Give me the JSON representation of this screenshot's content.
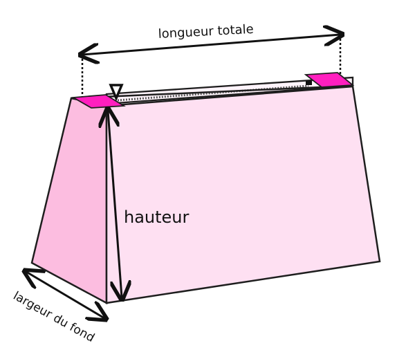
{
  "labels": {
    "total_length": "longueur totale",
    "height": "hauteur",
    "bottom_width": "largeur du fond"
  },
  "colors": {
    "front_panel": "#fee0f2",
    "side_panel": "#fcbde0",
    "top_strip": "#fff4fb",
    "accent_tab": "#ff1fbf",
    "outline": "#1e1e1e",
    "measure": "#111111"
  }
}
